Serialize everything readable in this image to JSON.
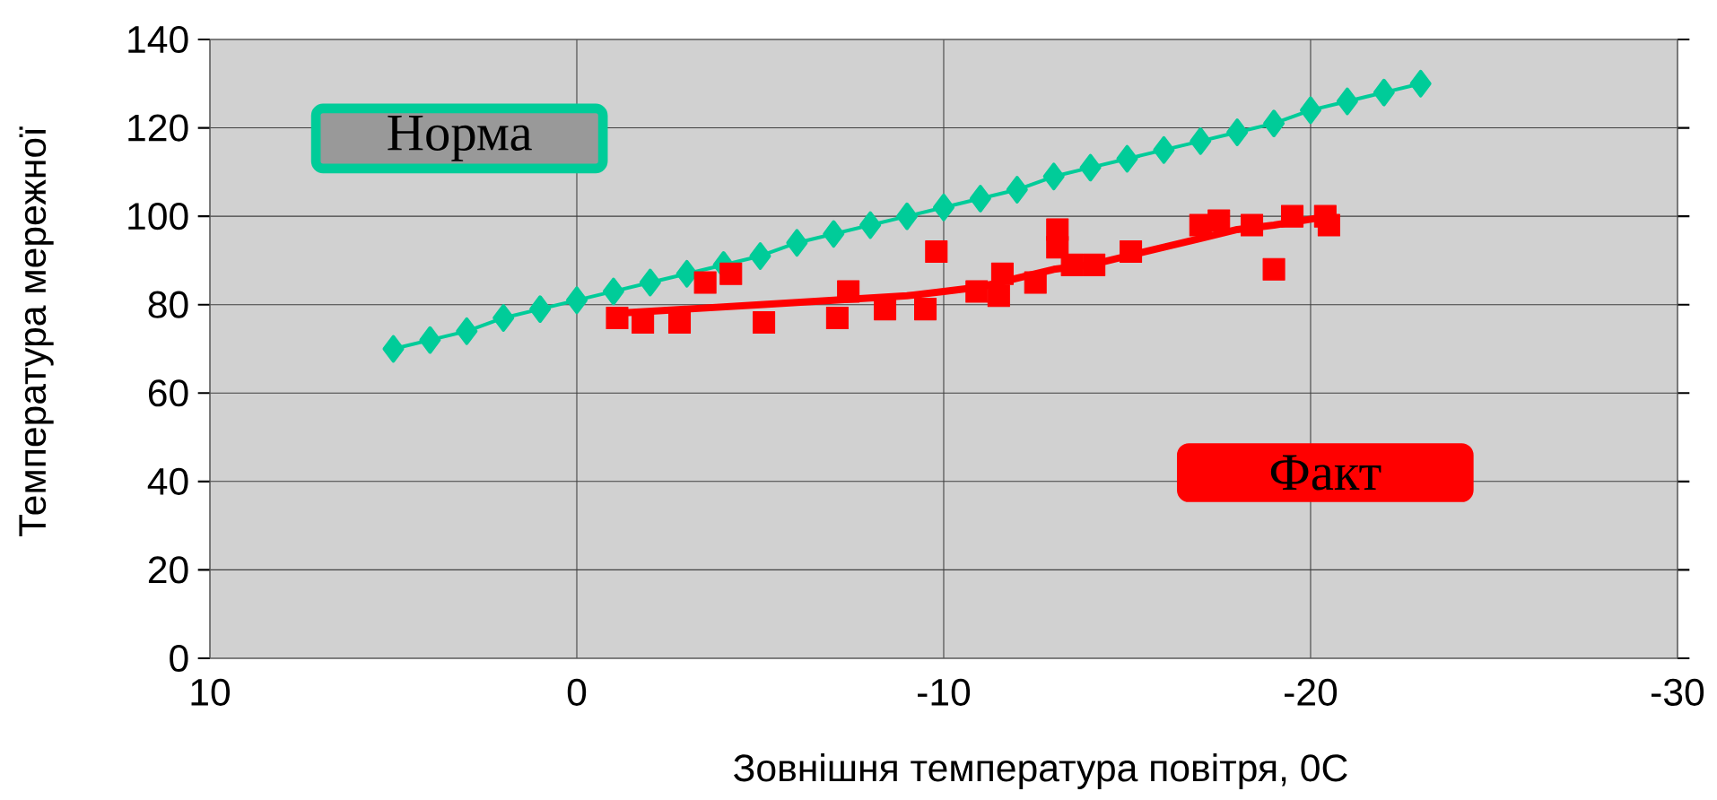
{
  "chart_data": {
    "type": "scatter",
    "xlabel": "Зовнішня температура повітря, 0C",
    "ylabel": "Температура мережної",
    "xlim": [
      10,
      -30
    ],
    "xticks": [
      10,
      0,
      -10,
      -20,
      -30
    ],
    "ylim": [
      0,
      140
    ],
    "yticks": [
      0,
      20,
      40,
      60,
      80,
      100,
      120,
      140
    ],
    "grid": true,
    "legend": "top left",
    "series": [
      {
        "name": "Норма",
        "type": "line",
        "color": "#00cc99",
        "marker": "diamond",
        "x": [
          5,
          4,
          3,
          2,
          1,
          0,
          -1,
          -2,
          -3,
          -4,
          -5,
          -6,
          -7,
          -8,
          -9,
          -10,
          -11,
          -12,
          -13,
          -14,
          -15,
          -16,
          -17,
          -18,
          -19,
          -20,
          -21,
          -22,
          -23
        ],
        "values": [
          70,
          72,
          74,
          77,
          79,
          81,
          83,
          85,
          87,
          89,
          91,
          94,
          96,
          98,
          100,
          102,
          104,
          106,
          109,
          111,
          113,
          115,
          117,
          119,
          121,
          124,
          126,
          128,
          130
        ]
      },
      {
        "name": "Факт",
        "color": "#ff0000",
        "marker": "square",
        "x": [
          -1.1,
          -1.8,
          -2.8,
          -3.5,
          -4.2,
          -5.1,
          -7.1,
          -7.4,
          -8.4,
          -9.5,
          -9.8,
          -10.9,
          -11.5,
          -11.6,
          -12.5,
          -13.1,
          -13.1,
          -13.5,
          -14.1,
          -15.1,
          -17.0,
          -17.5,
          -18.4,
          -19.0,
          -19.5,
          -20.4,
          -20.5
        ],
        "values": [
          77,
          76,
          76,
          85,
          87,
          76,
          77,
          83,
          79,
          79,
          92,
          83,
          82,
          87,
          85,
          97,
          93,
          89,
          89,
          92,
          98,
          99,
          98,
          88,
          100,
          100,
          98
        ]
      },
      {
        "type": "line",
        "color": "#ff0000",
        "marker": "none",
        "x": [
          -1,
          -3,
          -5,
          -7,
          -9,
          -10,
          -11,
          -12,
          -13,
          -14,
          -15,
          -16,
          -17,
          -18,
          -19,
          -20.5
        ],
        "values": [
          78,
          79,
          80,
          81,
          82,
          83,
          84,
          86,
          88,
          89,
          91,
          93,
          95,
          97,
          98,
          100
        ]
      }
    ]
  }
}
